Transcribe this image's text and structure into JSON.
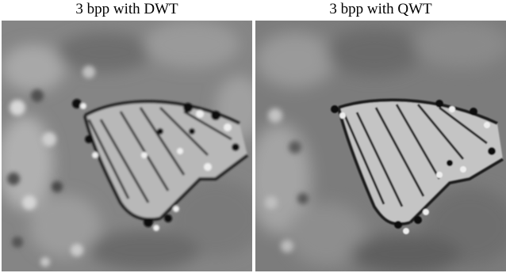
{
  "panels": [
    {
      "caption": "3 bpp with DWT"
    },
    {
      "caption": "3 bpp with QWT"
    }
  ]
}
